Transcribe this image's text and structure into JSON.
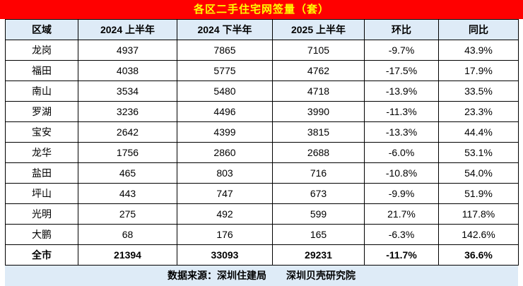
{
  "title": "各区二手住宅网签量（套）",
  "footer": "数据来源：深圳住建局　　深圳贝壳研究院",
  "colors": {
    "title_bg": "#ff0000",
    "title_text": "#ffff00",
    "header_row_bg": "#deebf7",
    "footer_bg": "#deebf7",
    "border": "#000000"
  },
  "chart_data": {
    "type": "table",
    "title": "各区二手住宅网签量（套）",
    "columns": [
      "区域",
      "2024 上半年",
      "2024 下半年",
      "2025 上半年",
      "环比",
      "同比"
    ],
    "rows": [
      [
        "龙岗",
        "4937",
        "7865",
        "7105",
        "-9.7%",
        "43.9%"
      ],
      [
        "福田",
        "4038",
        "5775",
        "4762",
        "-17.5%",
        "17.9%"
      ],
      [
        "南山",
        "3534",
        "5480",
        "4718",
        "-13.9%",
        "33.5%"
      ],
      [
        "罗湖",
        "3236",
        "4496",
        "3990",
        "-11.3%",
        "23.3%"
      ],
      [
        "宝安",
        "2642",
        "4399",
        "3815",
        "-13.3%",
        "44.4%"
      ],
      [
        "龙华",
        "1756",
        "2860",
        "2688",
        "-6.0%",
        "53.1%"
      ],
      [
        "盐田",
        "465",
        "803",
        "716",
        "-10.8%",
        "54.0%"
      ],
      [
        "坪山",
        "443",
        "747",
        "673",
        "-9.9%",
        "51.9%"
      ],
      [
        "光明",
        "275",
        "492",
        "599",
        "21.7%",
        "117.8%"
      ],
      [
        "大鹏",
        "68",
        "176",
        "165",
        "-6.3%",
        "142.6%"
      ],
      [
        "全市",
        "21394",
        "33093",
        "29231",
        "-11.7%",
        "36.6%"
      ]
    ],
    "total_row_label": "全市",
    "source": "数据来源：深圳住建局　　深圳贝壳研究院",
    "layout": {
      "grid": "full-borders",
      "header_position": "top",
      "total_row": "last"
    }
  }
}
